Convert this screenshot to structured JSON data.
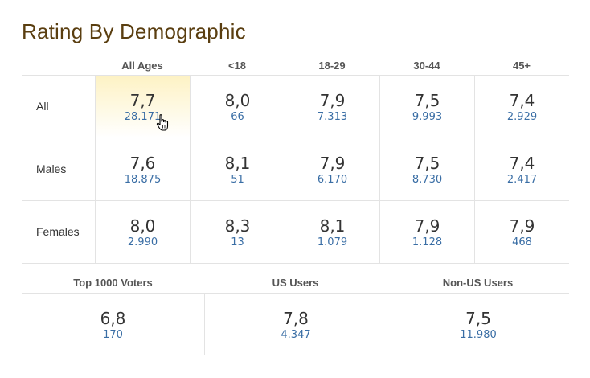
{
  "title": "Rating By Demographic",
  "columns": [
    "All Ages",
    "<18",
    "18-29",
    "30-44",
    "45+"
  ],
  "rows": [
    {
      "label": "All",
      "cells": [
        {
          "rating": "7,7",
          "votes": "28.171"
        },
        {
          "rating": "8,0",
          "votes": "66"
        },
        {
          "rating": "7,9",
          "votes": "7.313"
        },
        {
          "rating": "7,5",
          "votes": "9.993"
        },
        {
          "rating": "7,4",
          "votes": "2.929"
        }
      ]
    },
    {
      "label": "Males",
      "cells": [
        {
          "rating": "7,6",
          "votes": "18.875"
        },
        {
          "rating": "8,1",
          "votes": "51"
        },
        {
          "rating": "7,9",
          "votes": "6.170"
        },
        {
          "rating": "7,5",
          "votes": "8.730"
        },
        {
          "rating": "7,4",
          "votes": "2.417"
        }
      ]
    },
    {
      "label": "Females",
      "cells": [
        {
          "rating": "8,0",
          "votes": "2.990"
        },
        {
          "rating": "8,3",
          "votes": "13"
        },
        {
          "rating": "8,1",
          "votes": "1.079"
        },
        {
          "rating": "7,9",
          "votes": "1.128"
        },
        {
          "rating": "7,9",
          "votes": "468"
        }
      ]
    }
  ],
  "groups": [
    {
      "label": "Top 1000 Voters",
      "rating": "6,8",
      "votes": "170"
    },
    {
      "label": "US Users",
      "rating": "7,8",
      "votes": "4.347"
    },
    {
      "label": "Non-US Users",
      "rating": "7,5",
      "votes": "11.980"
    }
  ],
  "colors": {
    "title": "#5a3e10",
    "link": "#3a6ea5",
    "highlight": "#fdf2c4"
  },
  "icons": {
    "cursor": "hand-pointer-icon"
  }
}
